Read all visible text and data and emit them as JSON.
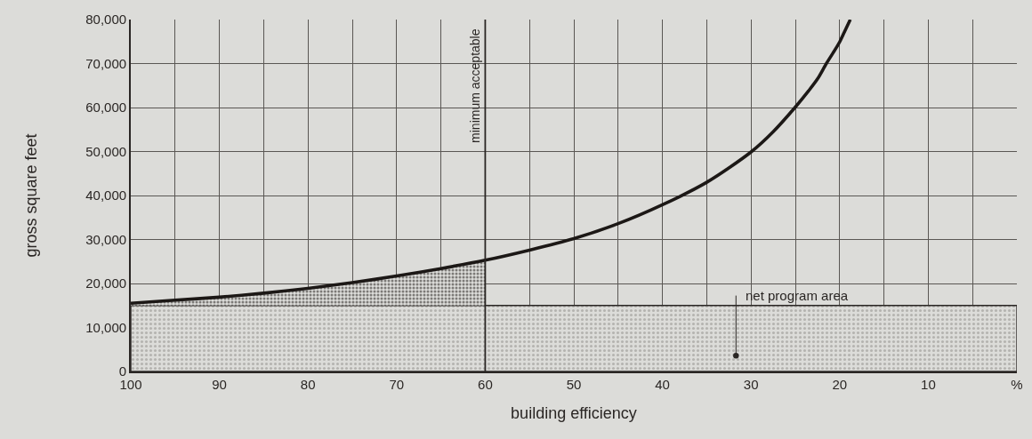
{
  "chart_data": {
    "type": "line",
    "xlabel": "building efficiency",
    "ylabel": "gross square feet",
    "x": [
      100,
      95,
      90,
      85,
      80,
      75,
      70,
      65,
      60,
      55,
      50,
      45,
      40,
      35,
      30,
      27.5,
      25,
      23.5,
      22.5,
      21.5,
      20.5,
      20,
      19.5,
      18.8
    ],
    "series": [
      {
        "color": "#1c1816",
        "values": [
          15500,
          16200,
          16900,
          17800,
          18900,
          20200,
          21700,
          23400,
          25300,
          27600,
          30200,
          33600,
          37900,
          43000,
          49900,
          54500,
          60100,
          63800,
          66500,
          70000,
          73200,
          74900,
          77000,
          80000
        ],
        "lower": [
          15000,
          15000,
          15000,
          15000,
          15000,
          15000,
          15000,
          15000,
          15000,
          null,
          null,
          null,
          null,
          null,
          null,
          null,
          null,
          null,
          null,
          null,
          null,
          null,
          null,
          null
        ],
        "upper": [
          15500,
          16200,
          16900,
          17800,
          18900,
          20200,
          21700,
          23400,
          25300,
          null,
          null,
          null,
          null,
          null,
          null,
          null,
          null,
          null,
          null,
          null,
          null,
          null,
          null,
          null
        ]
      }
    ],
    "xlim": [
      100,
      0
    ],
    "xticks": [
      100,
      {
        "value": 95,
        "label": null
      },
      90,
      {
        "value": 85,
        "label": null
      },
      80,
      {
        "value": 75,
        "label": null
      },
      70,
      {
        "value": 65,
        "label": null
      },
      60,
      {
        "value": 55,
        "label": null
      },
      50,
      {
        "value": 45,
        "label": null
      },
      40,
      {
        "value": 35,
        "label": null
      },
      30,
      {
        "value": 25,
        "label": null
      },
      20,
      {
        "value": 15,
        "label": null
      },
      10,
      {
        "value": 5,
        "label": null
      },
      {
        "value": 0,
        "label": "%"
      }
    ],
    "ylim": [
      0,
      80000
    ],
    "yticks": [
      0,
      {
        "value": 10000,
        "label": "10,000"
      },
      {
        "value": 20000,
        "label": "20,000"
      },
      {
        "value": 30000,
        "label": "30,000"
      },
      {
        "value": 40000,
        "label": "40,000"
      },
      {
        "value": 50000,
        "label": "50,000"
      },
      {
        "value": 60000,
        "label": "60,000"
      },
      {
        "value": 70000,
        "label": "70,000"
      },
      {
        "value": 80000,
        "label": "80,000"
      }
    ],
    "ref_lines": [
      {
        "axis": "x",
        "value": 60,
        "label": "minimum acceptable"
      }
    ],
    "bands": [
      {
        "axis": "y",
        "from": 0,
        "to": 15000,
        "label": "net program area"
      }
    ],
    "grid": true
  }
}
